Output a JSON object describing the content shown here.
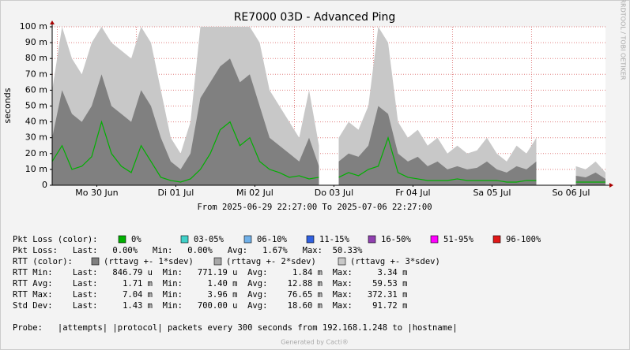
{
  "chart_data": {
    "type": "smokeping",
    "title": "RE7000 03D - Advanced Ping",
    "y_label": "seconds",
    "side_text": "RRDTOOL / TOBI OETIKER",
    "x_label": "From 2025-06-29 22:27:00 To 2025-07-06 22:27:00",
    "footer": "Generated by Cacti®",
    "xlim": [
      0,
      168
    ],
    "xticks": [
      {
        "value": 13.55,
        "label": "Mo 30 Jun"
      },
      {
        "value": 37.55,
        "label": "Di 01 Jul"
      },
      {
        "value": 61.55,
        "label": "Mi 02 Jul"
      },
      {
        "value": 85.55,
        "label": "Do 03 Jul"
      },
      {
        "value": 109.55,
        "label": "Fr 04 Jul"
      },
      {
        "value": 133.55,
        "label": "Sa 05 Jul"
      },
      {
        "value": 157.55,
        "label": "So 06 Jul"
      }
    ],
    "xgrid": [
      1.55,
      25.55,
      49.55,
      73.55,
      97.55,
      121.55,
      145.55
    ],
    "ylim": [
      0,
      0.1
    ],
    "yticks": [
      0,
      {
        "value": 0.01,
        "label": "10 m"
      },
      {
        "value": 0.02,
        "label": "20 m"
      },
      {
        "value": 0.03,
        "label": "30 m"
      },
      {
        "value": 0.04,
        "label": "40 m"
      },
      {
        "value": 0.05,
        "label": "50 m"
      },
      {
        "value": 0.06,
        "label": "60 m"
      },
      {
        "value": 0.07,
        "label": "70 m"
      },
      {
        "value": 0.08,
        "label": "80 m"
      },
      {
        "value": 0.09,
        "label": "90 m"
      },
      {
        "value": 0.1,
        "label": "100 m"
      }
    ],
    "grid": true,
    "x": [
      0,
      3,
      6,
      9,
      12,
      15,
      18,
      21,
      24,
      27,
      30,
      33,
      36,
      39,
      42,
      45,
      48,
      51,
      54,
      57,
      60,
      63,
      66,
      69,
      72,
      75,
      78,
      81,
      84,
      87,
      90,
      93,
      96,
      99,
      102,
      105,
      108,
      111,
      114,
      117,
      120,
      123,
      126,
      129,
      132,
      135,
      138,
      141,
      144,
      147,
      150,
      153,
      156,
      159,
      162,
      165,
      168
    ],
    "series": [
      {
        "name": "(rttavg +- 3*sdev)",
        "color": "#c8c8c8",
        "kind": "area",
        "values": [
          0.06,
          0.1,
          0.08,
          0.07,
          0.09,
          0.1,
          0.09,
          0.085,
          0.08,
          0.1,
          0.09,
          0.06,
          0.03,
          0.02,
          0.04,
          0.1,
          0.1,
          0.1,
          0.1,
          0.1,
          0.1,
          0.09,
          0.06,
          0.05,
          0.04,
          0.03,
          0.06,
          0.025,
          null,
          0.03,
          0.04,
          0.035,
          0.05,
          0.1,
          0.09,
          0.04,
          0.03,
          0.035,
          0.025,
          0.03,
          0.02,
          0.025,
          0.02,
          0.022,
          0.03,
          0.02,
          0.015,
          0.025,
          0.02,
          0.03,
          null,
          null,
          null,
          0.012,
          0.01,
          0.015,
          0.008
        ]
      },
      {
        "name": "(rttavg +- 1*sdev)",
        "color": "#808080",
        "kind": "area",
        "values": [
          0.03,
          0.06,
          0.045,
          0.04,
          0.05,
          0.07,
          0.05,
          0.045,
          0.04,
          0.06,
          0.05,
          0.03,
          0.015,
          0.01,
          0.02,
          0.055,
          0.065,
          0.075,
          0.08,
          0.065,
          0.07,
          0.05,
          0.03,
          0.025,
          0.02,
          0.015,
          0.03,
          0.012,
          null,
          0.015,
          0.02,
          0.018,
          0.025,
          0.05,
          0.045,
          0.02,
          0.015,
          0.018,
          0.012,
          0.015,
          0.01,
          0.012,
          0.01,
          0.011,
          0.015,
          0.01,
          0.008,
          0.012,
          0.01,
          0.015,
          null,
          null,
          null,
          0.006,
          0.005,
          0.008,
          0.004
        ]
      },
      {
        "name": "0%",
        "color": "#00b000",
        "kind": "line",
        "values": [
          0.015,
          0.025,
          0.01,
          0.012,
          0.018,
          0.04,
          0.02,
          0.012,
          0.008,
          0.025,
          0.015,
          0.005,
          0.003,
          0.002,
          0.004,
          0.01,
          0.02,
          0.035,
          0.04,
          0.025,
          0.03,
          0.015,
          0.01,
          0.008,
          0.005,
          0.006,
          0.004,
          0.005,
          null,
          0.005,
          0.008,
          0.006,
          0.01,
          0.012,
          0.03,
          0.008,
          0.005,
          0.004,
          0.003,
          0.003,
          0.003,
          0.004,
          0.003,
          0.003,
          0.003,
          0.003,
          0.002,
          0.002,
          0.003,
          0.003,
          null,
          null,
          null,
          0.002,
          0.002,
          0.002,
          0.002
        ]
      }
    ],
    "rtt_colors_label": "RTT (color):",
    "rtt_colors": [
      {
        "label": "(rttavg +- 1*sdev)",
        "color": "#808080"
      },
      {
        "label": "(rttavg +- 2*sdev)",
        "color": "#a8a8a8"
      },
      {
        "label": "(rttavg +- 3*sdev)",
        "color": "#c8c8c8"
      }
    ],
    "loss_colors_label": "Pkt Loss (color):",
    "loss_colors": [
      {
        "label": "0%",
        "color": "#00b000"
      },
      {
        "label": "03-05%",
        "color": "#40d0c8"
      },
      {
        "label": "06-10%",
        "color": "#70b0e8"
      },
      {
        "label": "11-15%",
        "color": "#3060e0"
      },
      {
        "label": "16-50%",
        "color": "#9040b0"
      },
      {
        "label": "51-95%",
        "color": "#ff00ff"
      },
      {
        "label": "96-100%",
        "color": "#e01818"
      }
    ],
    "stats": [
      "Pkt Loss:   Last:   0.00%   Min:   0.00%   Avg:   1.67%   Max:  50.33%",
      "RTT Min:    Last:   846.79 u  Min:   771.19 u  Avg:     1.84 m  Max:     3.34 m",
      "RTT Avg:    Last:     1.71 m  Min:     1.40 m  Avg:    12.88 m  Max:    59.53 m",
      "RTT Max:    Last:     7.04 m  Min:     3.96 m  Avg:    76.65 m  Max:   372.31 m",
      "Std Dev:    Last:     1.43 m  Min:   700.00 u  Avg:    18.60 m  Max:    91.72 m"
    ],
    "probe": "Probe:   |attempts| |protocol| packets every 300 seconds from 192.168.1.248 to |hostname|"
  }
}
